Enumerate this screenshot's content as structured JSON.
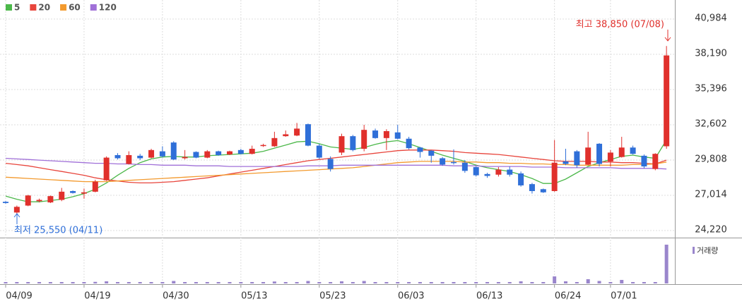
{
  "chart_data": {
    "type": "candlestick",
    "categories": [
      "04/09",
      null,
      null,
      null,
      null,
      null,
      null,
      "04/19",
      null,
      null,
      null,
      null,
      null,
      null,
      "04/30",
      null,
      null,
      null,
      null,
      null,
      null,
      "05/13",
      null,
      null,
      null,
      null,
      null,
      null,
      "05/23",
      null,
      null,
      null,
      null,
      null,
      null,
      "06/03",
      null,
      null,
      null,
      null,
      null,
      null,
      "06/13",
      null,
      null,
      null,
      null,
      null,
      null,
      "06/24",
      null,
      null,
      null,
      null,
      "07/01",
      null,
      null,
      null,
      null,
      null
    ],
    "open": [
      26500,
      25650,
      26200,
      26550,
      26450,
      26650,
      27350,
      27150,
      27300,
      28200,
      30200,
      29500,
      30150,
      30000,
      30500,
      31200,
      29950,
      30450,
      30000,
      30500,
      30250,
      30600,
      30300,
      30950,
      30900,
      31700,
      31750,
      32650,
      30950,
      29900,
      30400,
      31700,
      30700,
      32150,
      31550,
      32000,
      31500,
      30800,
      30550,
      29950,
      29650,
      29600,
      29250,
      28700,
      28650,
      29050,
      28750,
      27900,
      27500,
      27350,
      29700,
      30500,
      29450,
      31100,
      29700,
      30050,
      30800,
      30150,
      29100,
      30900
    ],
    "high": [
      26550,
      26200,
      27050,
      26750,
      27000,
      27600,
      27400,
      27550,
      28250,
      30100,
      30350,
      30500,
      30300,
      30700,
      30900,
      31300,
      30600,
      30500,
      30600,
      30550,
      30550,
      30700,
      30950,
      31100,
      32050,
      32150,
      32750,
      32700,
      31100,
      30100,
      31900,
      31800,
      32600,
      32300,
      32250,
      32600,
      31650,
      30850,
      30600,
      30050,
      30650,
      29800,
      29300,
      28800,
      29250,
      29300,
      28900,
      28000,
      27550,
      31400,
      30700,
      30600,
      32050,
      31150,
      30600,
      31650,
      30950,
      30250,
      30350,
      38850
    ],
    "low": [
      26350,
      25550,
      26150,
      26450,
      26400,
      26550,
      27150,
      26750,
      27250,
      28150,
      29850,
      29450,
      29800,
      29950,
      30000,
      29800,
      29850,
      29950,
      29950,
      30150,
      30200,
      30250,
      30250,
      30850,
      30850,
      31650,
      31700,
      30900,
      29900,
      28900,
      30200,
      30500,
      30500,
      31500,
      30600,
      31450,
      30650,
      30000,
      29600,
      29350,
      29450,
      28800,
      28500,
      28400,
      28500,
      28500,
      27700,
      27150,
      27200,
      27300,
      29400,
      29200,
      29400,
      29300,
      29300,
      30000,
      30250,
      29150,
      29000,
      30700
    ],
    "close": [
      26400,
      26100,
      27000,
      26650,
      26950,
      27300,
      27200,
      27250,
      28100,
      30000,
      29950,
      30200,
      29950,
      30600,
      30100,
      29850,
      30050,
      30000,
      30500,
      30200,
      30500,
      30300,
      30700,
      31000,
      31550,
      31850,
      32300,
      30950,
      30000,
      29100,
      31700,
      30600,
      32200,
      31550,
      32100,
      31500,
      30750,
      30450,
      30150,
      29450,
      29600,
      28950,
      28600,
      28550,
      29050,
      28650,
      27800,
      27350,
      27250,
      29600,
      29500,
      29400,
      30800,
      29500,
      30400,
      30800,
      30300,
      29300,
      30300,
      38100
    ],
    "up_color": "#e0302c",
    "down_color": "#2f6fd8",
    "series": [
      {
        "name": "5",
        "color": "#4cb84a",
        "values": [
          26950,
          26700,
          26500,
          26500,
          26600,
          26700,
          26900,
          27150,
          27500,
          28000,
          28600,
          29150,
          29600,
          29900,
          30050,
          30100,
          30050,
          30050,
          30150,
          30200,
          30250,
          30300,
          30350,
          30500,
          30750,
          31000,
          31250,
          31300,
          31100,
          30850,
          30750,
          30650,
          30800,
          31050,
          31250,
          31350,
          31100,
          30800,
          30500,
          30200,
          29950,
          29700,
          29400,
          29200,
          29050,
          28900,
          28650,
          28350,
          27950,
          27950,
          28300,
          28800,
          29300,
          29600,
          29850,
          30100,
          30200,
          30050,
          29950,
          31400
        ]
      },
      {
        "name": "20",
        "color": "#e8453c",
        "values": [
          29550,
          29450,
          29350,
          29200,
          29050,
          28900,
          28750,
          28600,
          28400,
          28250,
          28150,
          28050,
          28000,
          28000,
          28050,
          28100,
          28200,
          28300,
          28400,
          28550,
          28700,
          28850,
          29000,
          29150,
          29300,
          29450,
          29600,
          29750,
          29850,
          29950,
          30050,
          30150,
          30250,
          30350,
          30450,
          30550,
          30600,
          30600,
          30600,
          30550,
          30500,
          30400,
          30350,
          30300,
          30250,
          30150,
          30050,
          29950,
          29850,
          29750,
          29700,
          29700,
          29700,
          29650,
          29650,
          29600,
          29600,
          29550,
          29500,
          29800
        ]
      },
      {
        "name": "60",
        "color": "#f39a2e",
        "values": [
          28450,
          28400,
          28350,
          28300,
          28250,
          28200,
          28150,
          28100,
          28100,
          28100,
          28150,
          28200,
          28250,
          28300,
          28350,
          28400,
          28450,
          28500,
          28550,
          28600,
          28650,
          28700,
          28750,
          28800,
          28850,
          28900,
          28950,
          29000,
          29050,
          29100,
          29150,
          29200,
          29300,
          29400,
          29500,
          29600,
          29650,
          29700,
          29700,
          29700,
          29700,
          29650,
          29650,
          29600,
          29600,
          29550,
          29550,
          29500,
          29500,
          29450,
          29450,
          29400,
          29400,
          29400,
          29400,
          29400,
          29450,
          29450,
          29500,
          29650
        ]
      },
      {
        "name": "120",
        "color": "#a070d8",
        "values": [
          29950,
          29900,
          29850,
          29800,
          29750,
          29700,
          29650,
          29600,
          29550,
          29550,
          29500,
          29500,
          29450,
          29450,
          29400,
          29400,
          29400,
          29350,
          29350,
          29350,
          29300,
          29300,
          29300,
          29300,
          29300,
          29300,
          29300,
          29350,
          29350,
          29350,
          29400,
          29400,
          29400,
          29400,
          29400,
          29400,
          29400,
          29400,
          29400,
          29400,
          29350,
          29350,
          29350,
          29300,
          29300,
          29300,
          29300,
          29250,
          29250,
          29250,
          29200,
          29200,
          29200,
          29200,
          29200,
          29150,
          29150,
          29150,
          29150,
          29100
        ]
      }
    ],
    "volume_label": "거래량",
    "volume_color": "#9a86cc",
    "volume": [
      40,
      40,
      40,
      40,
      40,
      40,
      40,
      40,
      45,
      60,
      40,
      40,
      40,
      40,
      40,
      70,
      40,
      40,
      40,
      40,
      40,
      40,
      40,
      40,
      55,
      40,
      40,
      70,
      40,
      40,
      60,
      40,
      70,
      40,
      40,
      40,
      40,
      40,
      40,
      40,
      40,
      40,
      40,
      40,
      40,
      40,
      60,
      40,
      40,
      200,
      60,
      40,
      120,
      70,
      40,
      100,
      40,
      40,
      40,
      1100
    ],
    "ylim": [
      24220,
      40984
    ],
    "yticks": [
      {
        "value": 24220,
        "label": "24,220"
      },
      {
        "value": 27014,
        "label": "27,014"
      },
      {
        "value": 29808,
        "label": "29,808"
      },
      {
        "value": 32602,
        "label": "32,602"
      },
      {
        "value": 35396,
        "label": "35,396"
      },
      {
        "value": 38190,
        "label": "38,190"
      },
      {
        "value": 40984,
        "label": "40,984"
      }
    ],
    "grid": true,
    "annotations": [
      {
        "text": "최고 38,850 (07/08)",
        "color": "#e0302c"
      },
      {
        "text": "최저 25,550 (04/11)",
        "color": "#2f6fd8"
      }
    ]
  }
}
